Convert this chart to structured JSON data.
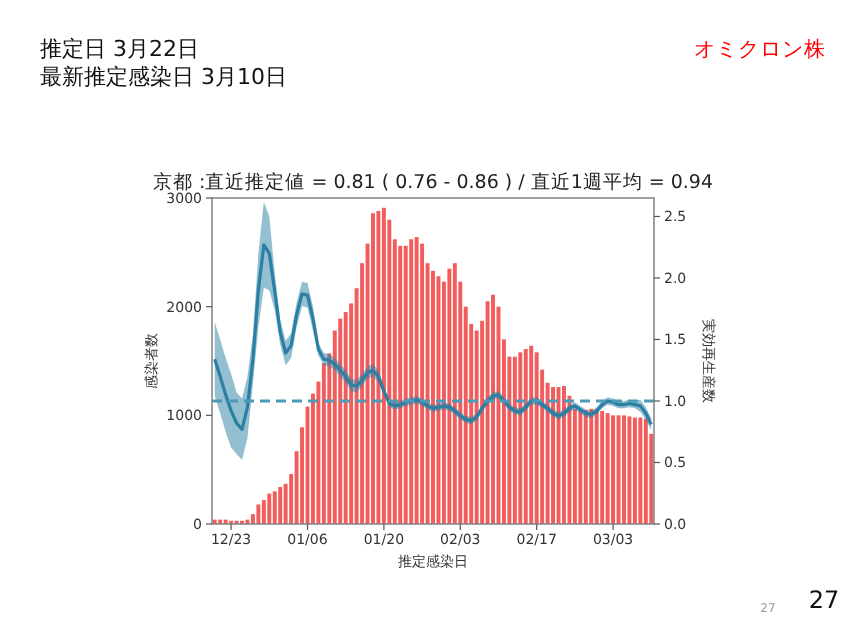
{
  "chart_data": {
    "type": "bar",
    "title": "京都 :直近推定値 = 0.81 ( 0.76 - 0.86 ) / 直近1週平均 = 0.94",
    "xlabel": "推定感染日",
    "ylabel": "感染者数",
    "y2label": "実効再生産数",
    "annotations": [
      "推定日  3月22日",
      "最新推定感染日  3月10日",
      "オミクロン株",
      "27",
      "27"
    ],
    "categories": [
      null,
      null,
      null,
      "12/23",
      null,
      null,
      null,
      null,
      null,
      null,
      null,
      null,
      null,
      null,
      null,
      null,
      null,
      "01/06",
      null,
      null,
      null,
      null,
      null,
      null,
      null,
      null,
      null,
      null,
      null,
      null,
      null,
      "01/20",
      null,
      null,
      null,
      null,
      null,
      null,
      null,
      null,
      null,
      null,
      null,
      null,
      null,
      "02/03",
      null,
      null,
      null,
      null,
      null,
      null,
      null,
      null,
      null,
      null,
      null,
      null,
      null,
      "02/17",
      null,
      null,
      null,
      null,
      null,
      null,
      null,
      null,
      null,
      null,
      null,
      null,
      null,
      "03/03",
      null,
      null,
      null,
      null,
      null,
      null,
      null
    ],
    "ylim": [
      0,
      3000
    ],
    "yticks": [
      0,
      1000,
      2000,
      3000
    ],
    "y2lim": [
      0,
      2.65
    ],
    "y2ticks": [
      {
        "value": 0,
        "label": "0.0"
      },
      0.5,
      {
        "value": 1,
        "label": "1.0"
      },
      1.5,
      {
        "value": 2,
        "label": "2.0"
      },
      2.5
    ],
    "ref_lines": [
      {
        "axis": "y2",
        "value": 1,
        "color": "#4a9ab8",
        "line_style": "dashed"
      }
    ],
    "series": [
      {
        "color": "#f25c5c",
        "values": [
          40,
          40,
          40,
          30,
          30,
          30,
          40,
          90,
          180,
          220,
          280,
          300,
          340,
          370,
          460,
          670,
          890,
          1080,
          1200,
          1310,
          1480,
          1570,
          1780,
          1890,
          1950,
          2030,
          2170,
          2400,
          2580,
          2860,
          2880,
          2910,
          2800,
          2620,
          2560,
          2560,
          2620,
          2640,
          2580,
          2400,
          2330,
          2280,
          2230,
          2350,
          2400,
          2230,
          2000,
          1840,
          1780,
          1870,
          2050,
          2110,
          2000,
          1700,
          1540,
          1540,
          1580,
          1610,
          1640,
          1580,
          1420,
          1300,
          1260,
          1260,
          1270,
          1180,
          1060,
          1040,
          1050,
          1060,
          1050,
          1040,
          1020,
          1000,
          1000,
          1000,
          990,
          980,
          980,
          970,
          830
        ]
      },
      {
        "type": "line",
        "axis": "y2",
        "color": "#2a7fa3",
        "values": [
          1.34,
          1.2,
          1.05,
          0.92,
          0.82,
          0.77,
          0.95,
          1.34,
          1.9,
          2.27,
          2.2,
          1.89,
          1.56,
          1.39,
          1.45,
          1.7,
          1.87,
          1.86,
          1.67,
          1.42,
          1.34,
          1.33,
          1.3,
          1.25,
          1.2,
          1.13,
          1.12,
          1.17,
          1.23,
          1.25,
          1.2,
          1.08,
          0.98,
          0.96,
          0.97,
          0.99,
          1.0,
          1.01,
          0.99,
          0.96,
          0.94,
          0.95,
          0.96,
          0.95,
          0.92,
          0.88,
          0.85,
          0.84,
          0.87,
          0.94,
          1.0,
          1.04,
          1.05,
          1.0,
          0.95,
          0.92,
          0.91,
          0.95,
          1.0,
          1.0,
          0.97,
          0.94,
          0.9,
          0.88,
          0.9,
          0.94,
          0.96,
          0.93,
          0.9,
          0.89,
          0.92,
          0.97,
          1.0,
          0.99,
          0.97,
          0.97,
          0.98,
          0.97,
          0.96,
          0.9,
          0.81
        ],
        "upper": [
          1.64,
          1.5,
          1.35,
          1.22,
          1.07,
          1.02,
          1.2,
          1.54,
          2.2,
          2.62,
          2.5,
          2.04,
          1.66,
          1.49,
          1.55,
          1.8,
          1.97,
          1.96,
          1.77,
          1.47,
          1.39,
          1.38,
          1.35,
          1.3,
          1.25,
          1.18,
          1.17,
          1.22,
          1.28,
          1.3,
          1.25,
          1.11,
          1.01,
          0.99,
          1.0,
          1.02,
          1.03,
          1.04,
          1.02,
          0.99,
          0.97,
          0.98,
          0.99,
          0.98,
          0.95,
          0.91,
          0.88,
          0.87,
          0.9,
          0.97,
          1.03,
          1.07,
          1.08,
          1.03,
          0.98,
          0.95,
          0.94,
          0.98,
          1.03,
          1.03,
          1.0,
          0.97,
          0.93,
          0.91,
          0.93,
          0.97,
          0.99,
          0.96,
          0.93,
          0.92,
          0.95,
          1.0,
          1.03,
          1.02,
          1.0,
          1.0,
          1.01,
          1.0,
          1.01,
          0.95,
          0.86
        ],
        "lower": [
          1.04,
          0.9,
          0.75,
          0.62,
          0.57,
          0.52,
          0.7,
          1.14,
          1.6,
          1.92,
          1.9,
          1.74,
          1.46,
          1.29,
          1.35,
          1.6,
          1.77,
          1.76,
          1.57,
          1.37,
          1.29,
          1.28,
          1.25,
          1.2,
          1.15,
          1.08,
          1.07,
          1.12,
          1.18,
          1.2,
          1.15,
          1.05,
          0.95,
          0.93,
          0.94,
          0.96,
          0.97,
          0.98,
          0.96,
          0.93,
          0.91,
          0.92,
          0.93,
          0.92,
          0.89,
          0.85,
          0.82,
          0.81,
          0.84,
          0.91,
          0.97,
          1.01,
          1.02,
          0.97,
          0.92,
          0.89,
          0.88,
          0.92,
          0.97,
          0.97,
          0.94,
          0.91,
          0.87,
          0.85,
          0.87,
          0.91,
          0.93,
          0.9,
          0.87,
          0.86,
          0.89,
          0.94,
          0.97,
          0.96,
          0.94,
          0.94,
          0.95,
          0.94,
          0.91,
          0.85,
          0.76
        ]
      }
    ]
  }
}
